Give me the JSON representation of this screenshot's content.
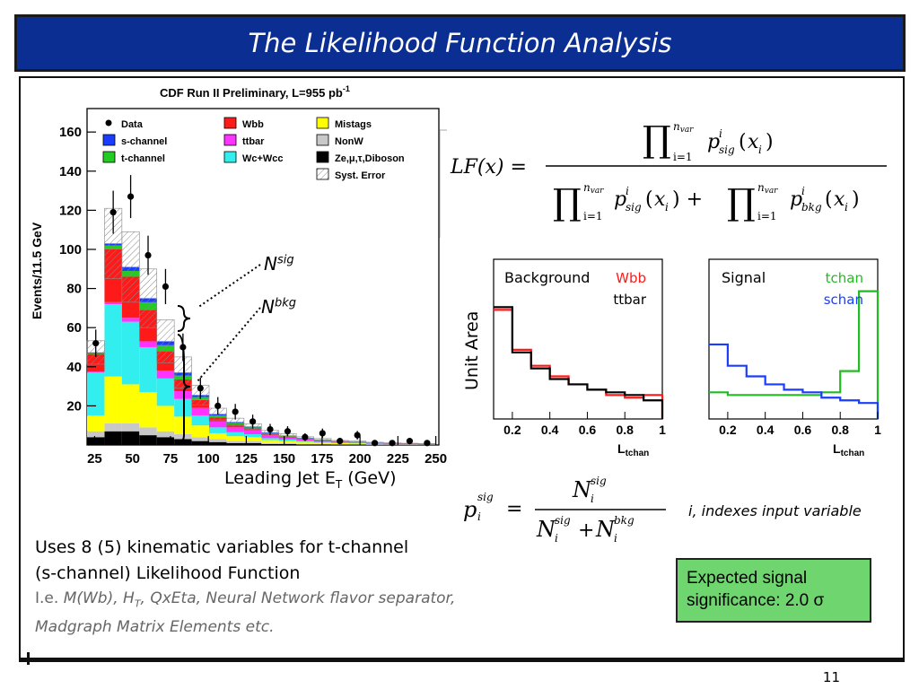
{
  "slide": {
    "title": "The Likelihood Function Analysis",
    "page_number": "11",
    "colors": {
      "title_bg": "#0a2e91",
      "box_bg": "#6fd66f"
    }
  },
  "main_plot": {
    "header": "CDF Run II Preliminary, L=955 pb",
    "header_sup": "-1",
    "ylabel": "Events/11.5 GeV",
    "xlabel": "Leading Jet E",
    "xlabel_sub": "T",
    "xlabel_unit": "(GeV)",
    "legend": [
      {
        "label": "Data",
        "color": "#000000",
        "marker": "point"
      },
      {
        "label": "Wbb",
        "color": "#ff1a1a"
      },
      {
        "label": "Mistags",
        "color": "#ffff00"
      },
      {
        "label": "s-channel",
        "color": "#1a3cff"
      },
      {
        "label": "ttbar",
        "color": "#ff33ff"
      },
      {
        "label": "NonW",
        "color": "#c8c8c8"
      },
      {
        "label": "t-channel",
        "color": "#22cc22"
      },
      {
        "label": "Wc+Wcc",
        "color": "#33eeee"
      },
      {
        "label": "Ze,μ,τ,Diboson",
        "color": "#000000"
      },
      {
        "label": "Syst. Error",
        "color": "#dddddd",
        "hatched": true
      }
    ],
    "annotations": {
      "nsig": "N",
      "nsig_sup": "sig",
      "nbkg": "N",
      "nbkg_sup": "bkg"
    }
  },
  "chart_data": [
    {
      "type": "bar",
      "stacked": true,
      "x_ticks": [
        25,
        50,
        75,
        100,
        125,
        150,
        175,
        200,
        225,
        250
      ],
      "y_ticks": [
        20,
        40,
        60,
        80,
        100,
        120,
        140,
        160
      ],
      "xlim": [
        20,
        252
      ],
      "ylim": [
        0,
        172
      ],
      "bin_edges": [
        20,
        31.5,
        43,
        54.5,
        66,
        77.5,
        89,
        100.5,
        112,
        123.5,
        135,
        146.5,
        158,
        169.5,
        181,
        192.5,
        204,
        215.5,
        227,
        238.5,
        250
      ],
      "series": [
        {
          "name": "Ze,μ,τ,Diboson",
          "color": "#000000",
          "values": [
            4,
            7,
            7,
            5,
            4,
            3,
            2,
            1.5,
            1,
            1,
            0.5,
            0.5,
            0.3,
            0.3,
            0.2,
            0.2,
            0.1,
            0.1,
            0.1,
            0.1
          ]
        },
        {
          "name": "NonW",
          "color": "#c8c8c8",
          "values": [
            3,
            4,
            4,
            4,
            3,
            2.5,
            2,
            1.5,
            1,
            1,
            0.5,
            0.5,
            0.3,
            0.3,
            0.2,
            0.2,
            0.1,
            0.1,
            0.1,
            0.1
          ]
        },
        {
          "name": "Mistags",
          "color": "#ffff00",
          "values": [
            8,
            24,
            20,
            18,
            13,
            9,
            6,
            3,
            2.5,
            2,
            1.5,
            1,
            1,
            0.6,
            0.5,
            0.4,
            0.3,
            0.2,
            0.2,
            0.1
          ]
        },
        {
          "name": "Wc+Wcc",
          "color": "#33eeee",
          "values": [
            22,
            37,
            32,
            23,
            14,
            9,
            5,
            3,
            2,
            1.5,
            1,
            0.8,
            0.5,
            0.4,
            0.3,
            0.2,
            0.2,
            0.1,
            0.1,
            0.1
          ]
        },
        {
          "name": "ttbar",
          "color": "#ff33ff",
          "values": [
            0.5,
            1,
            2,
            3,
            4,
            4,
            4,
            3,
            2.5,
            2,
            1.5,
            1,
            0.8,
            0.6,
            0.4,
            0.3,
            0.2,
            0.2,
            0.1,
            0.1
          ]
        },
        {
          "name": "Wbb",
          "color": "#ff1a1a",
          "values": [
            9,
            27,
            21,
            16,
            10,
            6,
            4,
            2,
            1.5,
            1,
            0.7,
            0.5,
            0.4,
            0.3,
            0.2,
            0.2,
            0.1,
            0.1,
            0.1,
            0.1
          ]
        },
        {
          "name": "t-channel",
          "color": "#22cc22",
          "values": [
            0.5,
            2,
            3,
            4,
            3,
            2,
            1.5,
            1,
            0.7,
            0.5,
            0.4,
            0.3,
            0.2,
            0.2,
            0.1,
            0.1,
            0.1,
            0.1,
            0.1,
            0
          ]
        },
        {
          "name": "s-channel",
          "color": "#1a3cff",
          "values": [
            0.3,
            1,
            2,
            2,
            2,
            1.5,
            1,
            0.8,
            0.5,
            0.4,
            0.3,
            0.2,
            0.2,
            0.1,
            0.1,
            0.1,
            0.1,
            0,
            0,
            0
          ]
        }
      ],
      "data_points": {
        "name": "Data",
        "y": [
          52,
          119,
          127,
          97,
          81,
          50,
          29,
          20,
          17,
          12,
          8,
          7,
          4,
          6,
          2,
          5,
          1,
          1,
          2,
          1
        ],
        "err": [
          7,
          11,
          11,
          10,
          9,
          7,
          5.5,
          4.5,
          4,
          3.5,
          2.8,
          2.6,
          2,
          2.4,
          1.4,
          2.2,
          1,
          1,
          1.4,
          1
        ]
      },
      "syst_error": [
        6,
        18,
        18,
        15,
        11,
        8,
        5,
        3,
        2,
        1.5,
        1,
        1,
        0.5,
        0.5,
        0.3,
        0.3,
        0.2,
        0.2,
        0.1,
        0.1
      ]
    },
    {
      "type": "line",
      "title": "Background",
      "xlabel": "L",
      "xlabel_sub": "tchan",
      "x_ticks": [
        "0.2",
        "0.4",
        "0.6",
        "0.8",
        "1"
      ],
      "xlim": [
        0.1,
        1.0
      ],
      "ylim": [
        0,
        0.3
      ],
      "bin_edges": [
        0.1,
        0.15,
        0.2,
        0.25,
        0.3,
        0.35,
        0.4,
        0.45,
        0.5,
        0.55,
        0.6,
        0.65,
        0.7,
        0.75,
        0.8,
        0.85,
        0.9,
        0.95,
        1.0
      ],
      "series": [
        {
          "name": "Wbb",
          "color": "#ff1a1a",
          "values": [
            0.205,
            0.205,
            0.13,
            0.13,
            0.1,
            0.1,
            0.08,
            0.08,
            0.065,
            0.065,
            0.055,
            0.055,
            0.045,
            0.045,
            0.04,
            0.04,
            0.045,
            0.045
          ]
        },
        {
          "name": "ttbar",
          "color": "#000000",
          "values": [
            0.21,
            0.21,
            0.125,
            0.125,
            0.095,
            0.095,
            0.075,
            0.075,
            0.065,
            0.065,
            0.055,
            0.055,
            0.05,
            0.05,
            0.045,
            0.045,
            0.035,
            0.035
          ]
        }
      ]
    },
    {
      "type": "line",
      "title": "Signal",
      "xlabel": "L",
      "xlabel_sub": "tchan",
      "x_ticks": [
        "0.2",
        "0.4",
        "0.6",
        "0.8",
        "1"
      ],
      "xlim": [
        0.1,
        1.0
      ],
      "ylim": [
        0,
        0.3
      ],
      "bin_edges": [
        0.1,
        0.15,
        0.2,
        0.25,
        0.3,
        0.35,
        0.4,
        0.45,
        0.5,
        0.55,
        0.6,
        0.65,
        0.7,
        0.75,
        0.8,
        0.85,
        0.9,
        0.95,
        1.0
      ],
      "series": [
        {
          "name": "tchan",
          "color": "#22bb22",
          "values": [
            0.05,
            0.05,
            0.045,
            0.045,
            0.045,
            0.045,
            0.045,
            0.045,
            0.045,
            0.045,
            0.045,
            0.045,
            0.05,
            0.05,
            0.09,
            0.09,
            0.24,
            0.24
          ]
        },
        {
          "name": "schan",
          "color": "#1a3cff",
          "values": [
            0.14,
            0.14,
            0.1,
            0.1,
            0.08,
            0.08,
            0.065,
            0.065,
            0.055,
            0.055,
            0.05,
            0.05,
            0.04,
            0.04,
            0.035,
            0.035,
            0.03,
            0.03
          ]
        }
      ]
    }
  ],
  "formulas": {
    "lf_lhs": "LF(x) =",
    "index_note": "i, indexes input variable"
  },
  "unit_area": "Unit Area",
  "body": {
    "line1": "Uses 8 (5) kinematic variables for t-channel",
    "line2": "(s-channel) Likelihood Function",
    "note_prefix": "I.e. ",
    "note_mwb": "M(Wb), H",
    "note_ht_sub": "T",
    "note_rest": ", QxEta, Neural Network flavor separator,",
    "note_line2": "Madgraph Matrix Elements etc."
  },
  "significance_box": {
    "line1": "Expected signal",
    "line2": "significance: 2.0 σ"
  }
}
